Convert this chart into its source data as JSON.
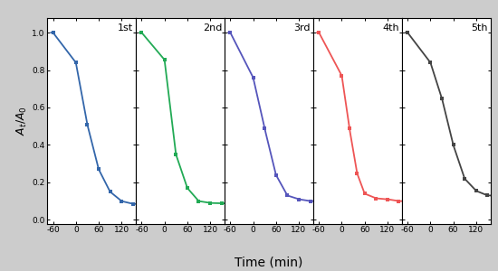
{
  "title": "",
  "ylabel": "$A_t/A_0$",
  "xlabel": "Time (min)",
  "background_color": "#cccccc",
  "panel_background": "#ffffff",
  "cycles": [
    "1st",
    "2nd",
    "3rd",
    "4th",
    "5th"
  ],
  "colors": [
    "#3366aa",
    "#22aa55",
    "#5555bb",
    "#ee5555",
    "#444444"
  ],
  "x_data": [
    [
      -60,
      0,
      30,
      60,
      90,
      120,
      150
    ],
    [
      -60,
      0,
      30,
      60,
      90,
      120,
      150
    ],
    [
      -60,
      0,
      30,
      60,
      90,
      120,
      150
    ],
    [
      -60,
      0,
      20,
      40,
      60,
      90,
      120,
      150
    ],
    [
      -60,
      0,
      30,
      60,
      90,
      120,
      150
    ]
  ],
  "y_data": [
    [
      1.0,
      0.84,
      0.51,
      0.27,
      0.15,
      0.1,
      0.085
    ],
    [
      1.0,
      0.855,
      0.35,
      0.17,
      0.1,
      0.09,
      0.088
    ],
    [
      1.0,
      0.76,
      0.49,
      0.24,
      0.13,
      0.11,
      0.1
    ],
    [
      1.0,
      0.77,
      0.49,
      0.25,
      0.14,
      0.115,
      0.11,
      0.1
    ],
    [
      1.0,
      0.84,
      0.65,
      0.4,
      0.22,
      0.155,
      0.13
    ]
  ],
  "xlim": [
    -75,
    158
  ],
  "ylim": [
    -0.02,
    1.08
  ],
  "yticks": [
    0.0,
    0.2,
    0.4,
    0.6,
    0.8,
    1.0
  ],
  "xticks": [
    -60,
    0,
    60,
    120
  ],
  "label_fontsize": 8,
  "tick_fontsize": 6.5,
  "cycle_label_fontsize": 8
}
